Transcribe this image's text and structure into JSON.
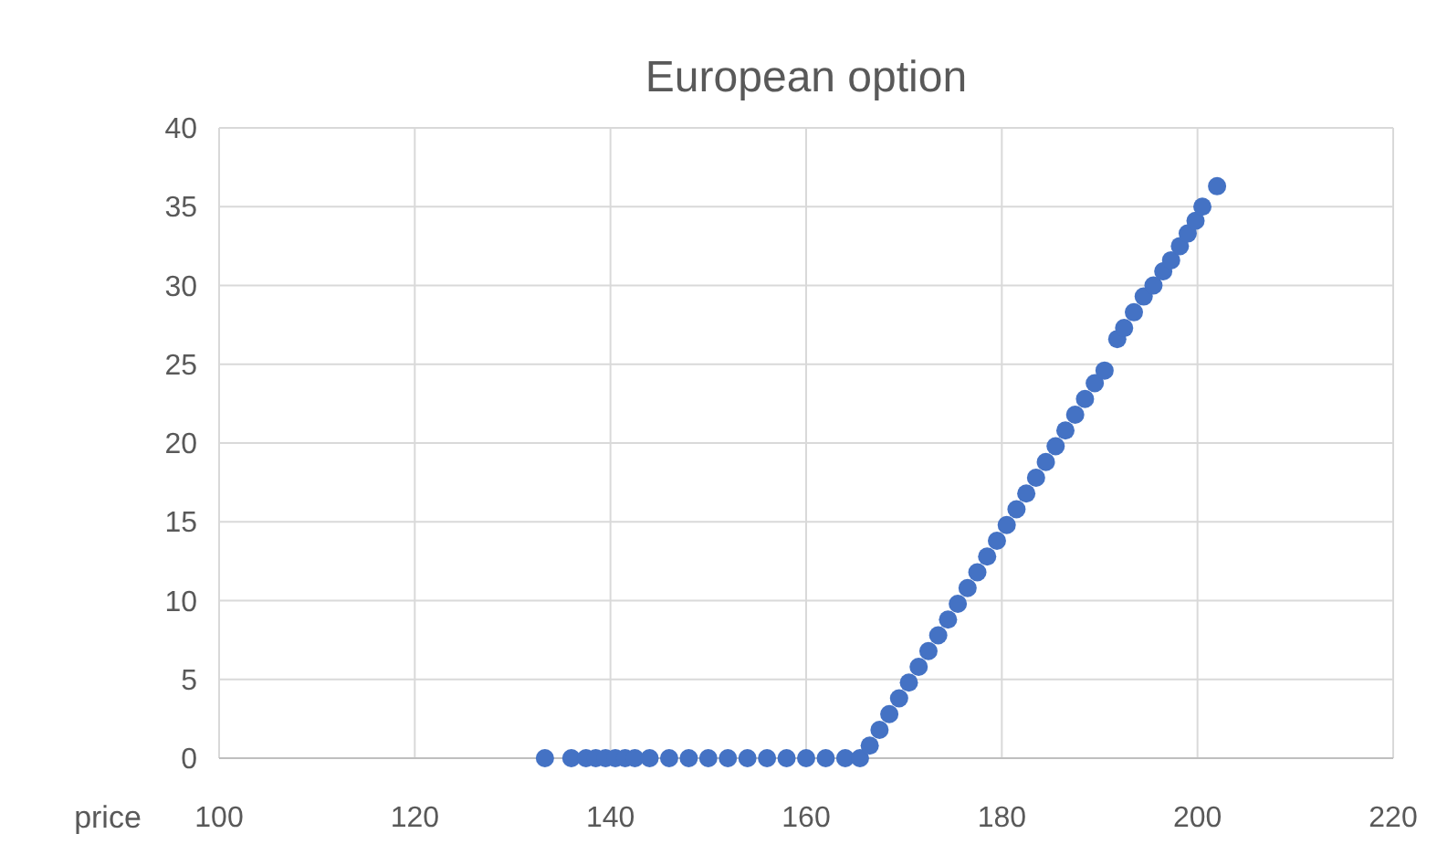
{
  "chart_data": {
    "type": "scatter",
    "title": "European option",
    "xlabel": "price",
    "marker": "circle",
    "grid": true,
    "xlim": [
      100,
      220
    ],
    "xticks": [
      100,
      120,
      140,
      160,
      180,
      200,
      220
    ],
    "ylim": [
      0,
      40
    ],
    "yticks": [
      0,
      5,
      10,
      15,
      20,
      25,
      30,
      35,
      40
    ],
    "x": [
      133.3,
      136,
      137.5,
      138.5,
      139.5,
      140.5,
      141.5,
      142.5,
      144,
      146,
      148,
      150,
      152,
      154,
      156,
      158,
      160,
      162,
      164,
      165.5,
      166.5,
      167.5,
      168.5,
      169.5,
      170.5,
      171.5,
      172.5,
      173.5,
      174.5,
      175.5,
      176.5,
      177.5,
      178.5,
      179.5,
      180.5,
      181.5,
      182.5,
      183.5,
      184.5,
      185.5,
      186.5,
      187.5,
      188.5,
      189.5,
      190.5,
      191.8,
      192.5,
      193.5,
      194.5,
      195.5,
      196.5,
      197.3,
      198.2,
      199,
      199.8,
      200.5,
      202
    ],
    "series": [
      {
        "color": "#4472c4",
        "values": [
          0,
          0,
          0,
          0,
          0,
          0,
          0,
          0,
          0,
          0,
          0,
          0,
          0,
          0,
          0,
          0,
          0,
          0,
          0,
          0,
          0.8,
          1.8,
          2.8,
          3.8,
          4.8,
          5.8,
          6.8,
          7.8,
          8.8,
          9.8,
          10.8,
          11.8,
          12.8,
          13.8,
          14.8,
          15.8,
          16.8,
          17.8,
          18.8,
          19.8,
          20.8,
          21.8,
          22.8,
          23.8,
          24.6,
          26.6,
          27.3,
          28.3,
          29.3,
          30,
          30.9,
          31.6,
          32.5,
          33.3,
          34.1,
          35,
          36.3
        ]
      }
    ]
  }
}
